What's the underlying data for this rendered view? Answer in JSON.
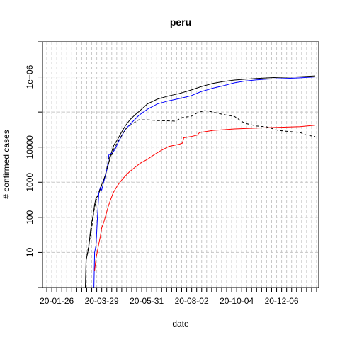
{
  "chart_data": {
    "type": "line",
    "title": "peru",
    "xlabel": "date",
    "ylabel": "# confirmed cases",
    "y_scale": "log10",
    "xlim": [
      "2020-01-06",
      "2021-01-27"
    ],
    "ylim": [
      1,
      10000000
    ],
    "grid": true,
    "legend": "none",
    "x_tick_labels": [
      {
        "date": "2020-01-26",
        "label": "20-01-26"
      },
      {
        "date": "2020-03-29",
        "label": "20-03-29"
      },
      {
        "date": "2020-05-31",
        "label": "20-05-31"
      },
      {
        "date": "2020-08-02",
        "label": "20-08-02"
      },
      {
        "date": "2020-10-04",
        "label": "20-10-04"
      },
      {
        "date": "2020-12-06",
        "label": "20-12-06"
      }
    ],
    "y_tick_labels": [
      {
        "value": 10,
        "label": "10"
      },
      {
        "value": 100,
        "label": "100"
      },
      {
        "value": 1000,
        "label": "1000"
      },
      {
        "value": 10000,
        "label": "10000"
      },
      {
        "value": 1000000,
        "label": "1e+06"
      }
    ],
    "series": [
      {
        "color": "#000000",
        "dash": "solid",
        "points": [
          [
            "2020-03-06",
            1
          ],
          [
            "2020-03-07",
            6
          ],
          [
            "2020-03-09",
            9
          ],
          [
            "2020-03-11",
            15
          ],
          [
            "2020-03-13",
            38
          ],
          [
            "2020-03-15",
            71
          ],
          [
            "2020-03-17",
            117
          ],
          [
            "2020-03-19",
            234
          ],
          [
            "2020-03-21",
            363
          ],
          [
            "2020-03-23",
            395
          ],
          [
            "2020-03-25",
            480
          ],
          [
            "2020-03-27",
            635
          ],
          [
            "2020-03-29",
            852
          ],
          [
            "2020-03-31",
            1065
          ],
          [
            "2020-04-03",
            1595
          ],
          [
            "2020-04-06",
            2561
          ],
          [
            "2020-04-09",
            4342
          ],
          [
            "2020-04-12",
            7519
          ],
          [
            "2020-04-15",
            11475
          ],
          [
            "2020-04-20",
            16325
          ],
          [
            "2020-04-25",
            25331
          ],
          [
            "2020-05-01",
            40459
          ],
          [
            "2020-05-08",
            61847
          ],
          [
            "2020-05-15",
            84495
          ],
          [
            "2020-05-22",
            111698
          ],
          [
            "2020-06-01",
            170039
          ],
          [
            "2020-06-15",
            232992
          ],
          [
            "2020-07-01",
            288477
          ],
          [
            "2020-07-15",
            333867
          ],
          [
            "2020-08-01",
            422183
          ],
          [
            "2020-08-15",
            525803
          ],
          [
            "2020-09-01",
            657129
          ],
          [
            "2020-09-15",
            738020
          ],
          [
            "2020-10-01",
            814829
          ],
          [
            "2020-10-15",
            856951
          ],
          [
            "2020-11-01",
            900180
          ],
          [
            "2020-11-15",
            935038
          ],
          [
            "2020-12-01",
            964492
          ],
          [
            "2020-12-15",
            985161
          ],
          [
            "2021-01-01",
            1017199
          ],
          [
            "2021-01-15",
            1050000
          ],
          [
            "2021-01-22",
            1070000
          ]
        ]
      },
      {
        "color": "#0000ff",
        "dash": "solid",
        "points": [
          [
            "2020-03-13",
            1
          ],
          [
            "2020-03-18",
            1
          ],
          [
            "2020-03-19",
            10
          ],
          [
            "2020-03-21",
            16
          ],
          [
            "2020-03-23",
            100
          ],
          [
            "2020-03-25",
            500
          ],
          [
            "2020-03-27",
            700
          ],
          [
            "2020-03-29",
            600
          ],
          [
            "2020-03-31",
            900
          ],
          [
            "2020-04-03",
            1500
          ],
          [
            "2020-04-06",
            2800
          ],
          [
            "2020-04-08",
            6000
          ],
          [
            "2020-04-10",
            6500
          ],
          [
            "2020-04-13",
            6800
          ],
          [
            "2020-04-17",
            9000
          ],
          [
            "2020-04-22",
            15000
          ],
          [
            "2020-05-01",
            32000
          ],
          [
            "2020-05-10",
            50000
          ],
          [
            "2020-05-20",
            80000
          ],
          [
            "2020-06-01",
            120000
          ],
          [
            "2020-06-15",
            170000
          ],
          [
            "2020-07-01",
            210000
          ],
          [
            "2020-07-15",
            240000
          ],
          [
            "2020-08-01",
            290000
          ],
          [
            "2020-08-15",
            380000
          ],
          [
            "2020-09-01",
            480000
          ],
          [
            "2020-09-15",
            560000
          ],
          [
            "2020-10-01",
            680000
          ],
          [
            "2020-10-15",
            760000
          ],
          [
            "2020-11-01",
            820000
          ],
          [
            "2020-11-15",
            860000
          ],
          [
            "2020-12-01",
            890000
          ],
          [
            "2020-12-15",
            910000
          ],
          [
            "2021-01-01",
            940000
          ],
          [
            "2021-01-22",
            1000000
          ]
        ]
      },
      {
        "color": "#ff0000",
        "dash": "solid",
        "points": [
          [
            "2020-03-19",
            3
          ],
          [
            "2020-03-21",
            7
          ],
          [
            "2020-03-23",
            11
          ],
          [
            "2020-03-25",
            18
          ],
          [
            "2020-03-27",
            28
          ],
          [
            "2020-03-29",
            50
          ],
          [
            "2020-04-01",
            75
          ],
          [
            "2020-04-04",
            120
          ],
          [
            "2020-04-07",
            200
          ],
          [
            "2020-04-10",
            300
          ],
          [
            "2020-04-14",
            500
          ],
          [
            "2020-04-20",
            800
          ],
          [
            "2020-04-28",
            1300
          ],
          [
            "2020-05-07",
            2000
          ],
          [
            "2020-05-15",
            2700
          ],
          [
            "2020-05-22",
            3500
          ],
          [
            "2020-06-01",
            4500
          ],
          [
            "2020-06-10",
            6000
          ],
          [
            "2020-06-20",
            8000
          ],
          [
            "2020-07-01",
            10500
          ],
          [
            "2020-07-15",
            12000
          ],
          [
            "2020-07-20",
            13000
          ],
          [
            "2020-07-22",
            18500
          ],
          [
            "2020-08-01",
            20000
          ],
          [
            "2020-08-10",
            22000
          ],
          [
            "2020-08-13",
            26000
          ],
          [
            "2020-09-01",
            30000
          ],
          [
            "2020-10-01",
            33000
          ],
          [
            "2020-11-01",
            35000
          ],
          [
            "2020-12-01",
            36500
          ],
          [
            "2021-01-01",
            38500
          ],
          [
            "2021-01-22",
            42000
          ]
        ]
      },
      {
        "color": "#000000",
        "dash": "dashed",
        "points": [
          [
            "2020-03-07",
            6
          ],
          [
            "2020-03-11",
            17
          ],
          [
            "2020-03-15",
            50
          ],
          [
            "2020-03-18",
            150
          ],
          [
            "2020-03-21",
            300
          ],
          [
            "2020-03-24",
            450
          ],
          [
            "2020-03-27",
            700
          ],
          [
            "2020-03-30",
            900
          ],
          [
            "2020-04-03",
            1600
          ],
          [
            "2020-04-06",
            3000
          ],
          [
            "2020-04-09",
            5500
          ],
          [
            "2020-04-12",
            6000
          ],
          [
            "2020-04-15",
            9000
          ],
          [
            "2020-04-20",
            14000
          ],
          [
            "2020-04-25",
            20000
          ],
          [
            "2020-05-01",
            32000
          ],
          [
            "2020-05-10",
            45000
          ],
          [
            "2020-05-20",
            60000
          ],
          [
            "2020-06-01",
            60000
          ],
          [
            "2020-06-15",
            57000
          ],
          [
            "2020-07-01",
            56000
          ],
          [
            "2020-07-10",
            55000
          ],
          [
            "2020-07-20",
            70000
          ],
          [
            "2020-08-01",
            75000
          ],
          [
            "2020-08-10",
            95000
          ],
          [
            "2020-08-20",
            110000
          ],
          [
            "2020-09-01",
            100000
          ],
          [
            "2020-09-15",
            85000
          ],
          [
            "2020-10-01",
            75000
          ],
          [
            "2020-10-15",
            48000
          ],
          [
            "2020-11-01",
            40000
          ],
          [
            "2020-11-15",
            38000
          ],
          [
            "2020-12-01",
            30000
          ],
          [
            "2020-12-15",
            28000
          ],
          [
            "2021-01-01",
            26000
          ],
          [
            "2021-01-10",
            22000
          ],
          [
            "2021-01-22",
            20000
          ]
        ]
      }
    ]
  }
}
